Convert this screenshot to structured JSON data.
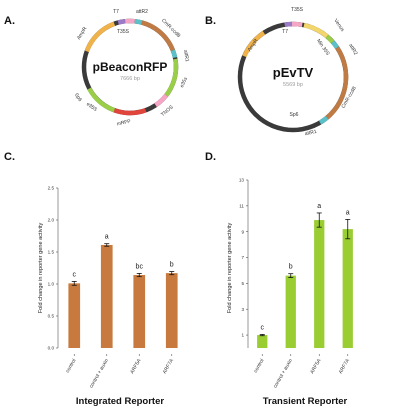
{
  "panels": {
    "a": "A.",
    "b": "B.",
    "c": "C.",
    "d": "D."
  },
  "plasmid_a": {
    "name": "pBeaconRFP",
    "size": "7666 bp",
    "features": {
      "t7": "T7",
      "attr2": "attR2",
      "t35s": "T35S",
      "cmr_ccdb": "CmR-ccdB",
      "attr1": "attR1",
      "e35s_right": "e35s",
      "tnos": "TNOS",
      "mrfp": "mRFP",
      "e35s_left": "e35S",
      "sp6": "Sp6",
      "ampr": "AmpR"
    }
  },
  "plasmid_b": {
    "name": "pEvTV",
    "size": "5569 bp",
    "features": {
      "t35s": "T35S",
      "t7": "T7",
      "venus": "Venus",
      "attr2": "attR2",
      "min35s": "Min 35S",
      "ampr": "AmpR",
      "cmr_ccdb": "CmR-ccdB",
      "sp6": "Sp6",
      "attr1": "attR1"
    }
  },
  "colors": {
    "backbone": "#3a3a3a",
    "ampr": "#f0b24b",
    "cmr_ccdb": "#c07a44",
    "attr": "#5bc0c8",
    "t7": "#9b7bc8",
    "terminator": "#f4a6c4",
    "promoter": "#9acd48",
    "mrfp": "#e0453c",
    "venus": "#f2d56b",
    "chart_c_bar": "#c87a3e",
    "chart_d_bar": "#9acd32",
    "error_bar": "#111111"
  },
  "chart_data": [
    {
      "type": "bar",
      "title": "Integrated Reporter",
      "ylabel": "Fold change in reporter gene activity",
      "xlabel": "",
      "categories": [
        "control",
        "control + auxin",
        "ARF5A",
        "ARF7A"
      ],
      "values": [
        1.01,
        1.61,
        1.14,
        1.17
      ],
      "errors": [
        0.03,
        0.02,
        0.025,
        0.025
      ],
      "significance_letters": [
        "c",
        "a",
        "bc",
        "b"
      ],
      "ylim": [
        0.0,
        2.5
      ],
      "yticks": [
        "0.0",
        "0.5",
        "1.0",
        "1.5",
        "2.0",
        "2.5"
      ],
      "grid": false
    },
    {
      "type": "bar",
      "title": "Transient Reporter",
      "ylabel": "Fold change in reporter gene activity",
      "xlabel": "",
      "categories": [
        "control",
        "control + auxin",
        "ARF5A",
        "ARF7A"
      ],
      "values": [
        1.0,
        5.6,
        9.9,
        9.2
      ],
      "errors": [
        0.05,
        0.15,
        0.55,
        0.75
      ],
      "significance_letters": [
        "c",
        "b",
        "a",
        "a"
      ],
      "ylim": [
        0,
        13
      ],
      "yticks": [
        "1",
        "3",
        "5",
        "7",
        "9",
        "11",
        "13"
      ],
      "grid": false
    }
  ]
}
